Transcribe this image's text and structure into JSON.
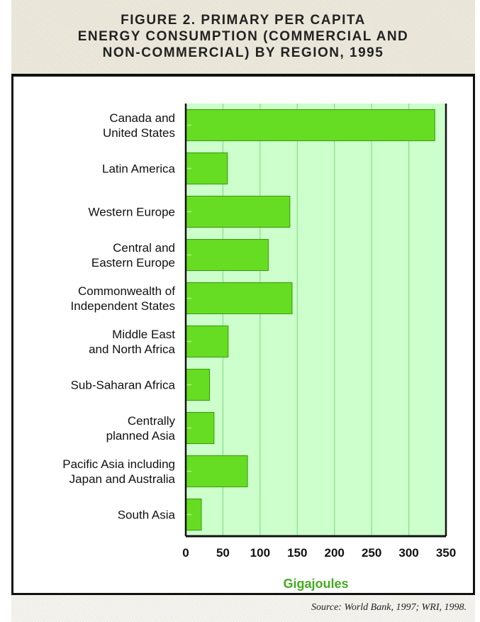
{
  "title": {
    "lines": [
      "FIGURE 2. PRIMARY PER CAPITA",
      "ENERGY CONSUMPTION (COMMERCIAL AND",
      "NON-COMMERCIAL) BY REGION, 1995"
    ]
  },
  "source": "Source: World Bank, 1997; WRI, 1998.",
  "colors": {
    "plot_background": "#ccffcc",
    "bar_fill": "#66dd22",
    "bar_edge": "#339900",
    "gridline": "#88dd88",
    "xlabel_color": "#44aa22",
    "title_band": "#ece9dc"
  },
  "chart_data": {
    "type": "bar",
    "orientation": "horizontal",
    "categories": [
      "Canada and\nUnited States",
      "Latin America",
      "Western Europe",
      "Central and\nEastern Europe",
      "Commonwealth of\nIndependent States",
      "Middle East\nand North Africa",
      "Sub-Saharan Africa",
      "Centrally\nplanned Asia",
      "Pacific Asia including\nJapan and Australia",
      "South Asia"
    ],
    "values": [
      335,
      56,
      140,
      111,
      143,
      57,
      32,
      38,
      83,
      21
    ],
    "xlabel": "Gigajoules",
    "xlim": [
      0,
      350
    ],
    "xticks": [
      0,
      50,
      100,
      150,
      200,
      250,
      300,
      350
    ],
    "grid": true
  }
}
